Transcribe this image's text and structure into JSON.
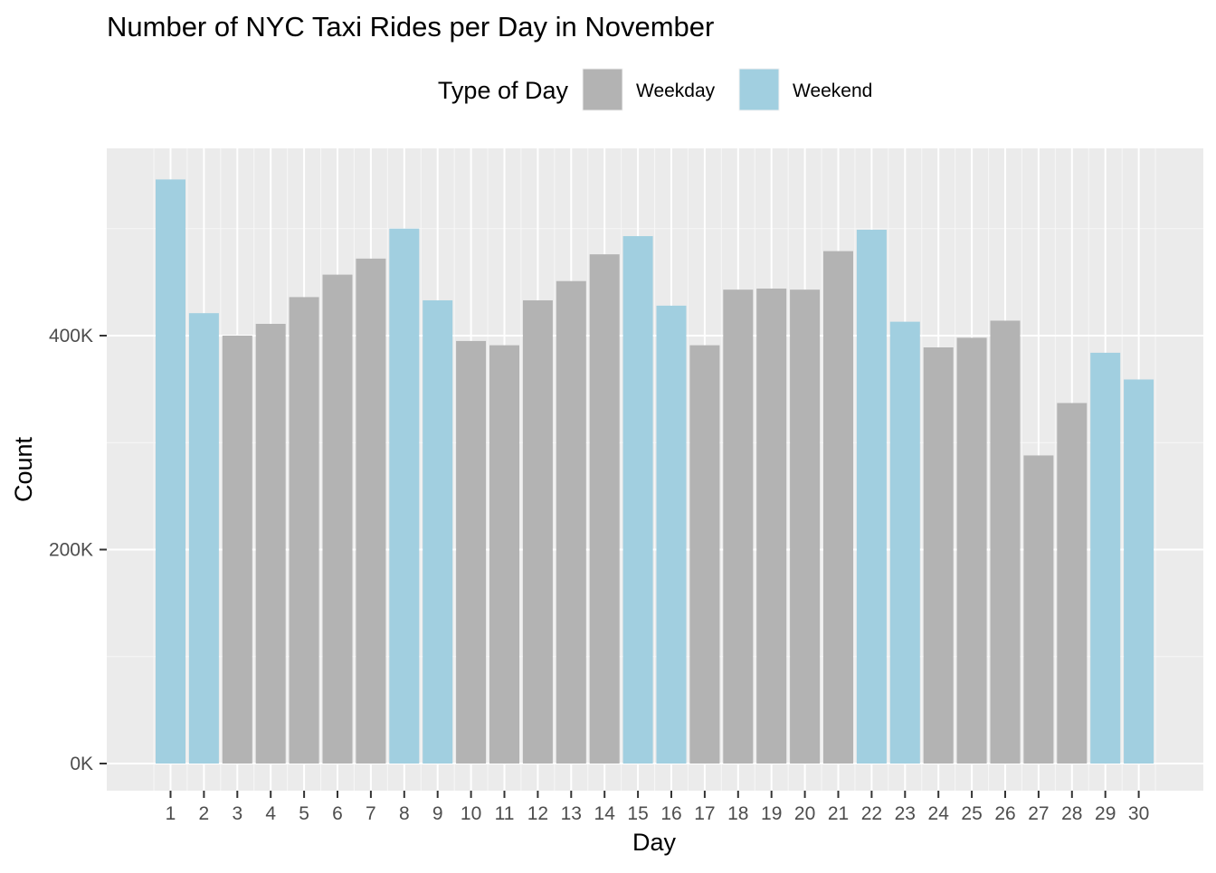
{
  "chart_data": {
    "type": "bar",
    "title": "Number of NYC Taxi Rides per Day in November",
    "xlabel": "Day",
    "ylabel": "Count",
    "legend": {
      "title": "Type of Day",
      "position": "top",
      "entries": [
        {
          "label": "Weekday",
          "color": "#B3B3B3"
        },
        {
          "label": "Weekend",
          "color": "#A1CFE0"
        }
      ]
    },
    "ylim": [
      0,
      555000
    ],
    "y_ticks": [
      {
        "value": 0,
        "label": "0K"
      },
      {
        "value": 200000,
        "label": "200K"
      },
      {
        "value": 400000,
        "label": "400K"
      }
    ],
    "y_minor_ticks": [
      100000,
      300000,
      500000
    ],
    "grid": true,
    "categories": [
      "1",
      "2",
      "3",
      "4",
      "5",
      "6",
      "7",
      "8",
      "9",
      "10",
      "11",
      "12",
      "13",
      "14",
      "15",
      "16",
      "17",
      "18",
      "19",
      "20",
      "21",
      "22",
      "23",
      "24",
      "25",
      "26",
      "27",
      "28",
      "29",
      "30"
    ],
    "values": [
      546000,
      421000,
      400000,
      411000,
      436000,
      457000,
      472000,
      500000,
      433000,
      395000,
      391000,
      433000,
      451000,
      476000,
      493000,
      428000,
      391000,
      443000,
      444000,
      443000,
      479000,
      499000,
      413000,
      389000,
      398000,
      414000,
      288000,
      337000,
      384000,
      359000
    ],
    "day_type": [
      "Weekend",
      "Weekend",
      "Weekday",
      "Weekday",
      "Weekday",
      "Weekday",
      "Weekday",
      "Weekend",
      "Weekend",
      "Weekday",
      "Weekday",
      "Weekday",
      "Weekday",
      "Weekday",
      "Weekend",
      "Weekend",
      "Weekday",
      "Weekday",
      "Weekday",
      "Weekday",
      "Weekday",
      "Weekend",
      "Weekend",
      "Weekday",
      "Weekday",
      "Weekday",
      "Weekday",
      "Weekday",
      "Weekend",
      "Weekend"
    ]
  }
}
